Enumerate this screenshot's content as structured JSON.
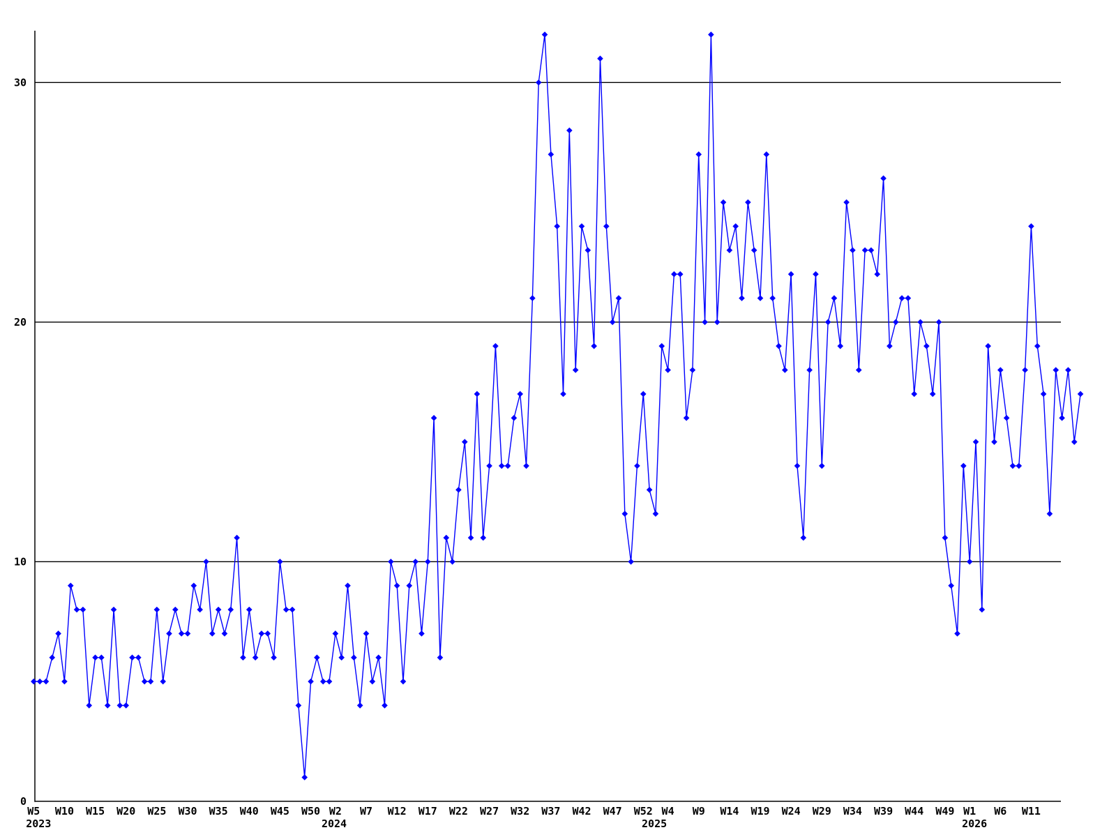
{
  "chart_data": {
    "type": "line",
    "title": "",
    "xlabel": "",
    "ylabel": "",
    "legend": "none",
    "grid": "horizontal",
    "line_color": "#0000ff",
    "marker": "diamond",
    "axis_color": "#000000",
    "background_color": "#ffffff",
    "y_ticks": [
      0,
      10,
      20,
      30
    ],
    "ylim": [
      0,
      32
    ],
    "x_unit": "week",
    "years": [
      {
        "year": "2023",
        "first_week": 5,
        "tick_weeks": [
          5,
          10,
          15,
          20,
          25,
          30,
          35,
          40,
          45,
          50
        ],
        "values": [
          5,
          5,
          5,
          6,
          7,
          5,
          9,
          8,
          8,
          4,
          6,
          6,
          4,
          8,
          4,
          4,
          6,
          6,
          5,
          5,
          8,
          5,
          7,
          8,
          7,
          7,
          9,
          8,
          10,
          7,
          8,
          7,
          8,
          11,
          6,
          8,
          6,
          7,
          7,
          6,
          10,
          8,
          8,
          4,
          1,
          5,
          6,
          5
        ]
      },
      {
        "year": "2024",
        "first_week": 1,
        "tick_weeks": [
          2,
          7,
          12,
          17,
          22,
          27,
          32,
          37,
          42,
          47,
          52
        ],
        "values": [
          5,
          7,
          6,
          9,
          6,
          4,
          7,
          5,
          6,
          4,
          10,
          9,
          5,
          9,
          10,
          7,
          10,
          16,
          6,
          11,
          10,
          13,
          15,
          11,
          17,
          11,
          14,
          19,
          14,
          14,
          16,
          17,
          14,
          21,
          30,
          32,
          27,
          24,
          17,
          28,
          18,
          24,
          23,
          19,
          31,
          24,
          20,
          21,
          12,
          10,
          14,
          17
        ]
      },
      {
        "year": "2025",
        "first_week": 1,
        "tick_weeks": [
          4,
          9,
          14,
          19,
          24,
          29,
          34,
          39,
          44,
          49
        ],
        "values": [
          13,
          12,
          19,
          18,
          22,
          22,
          16,
          18,
          27,
          20,
          32,
          20,
          25,
          23,
          24,
          21,
          25,
          23,
          21,
          27,
          21,
          19,
          18,
          22,
          14,
          11,
          18,
          22,
          14,
          20,
          21,
          19,
          25,
          23,
          18,
          23,
          23,
          22,
          26,
          19,
          20,
          21,
          21,
          17,
          20,
          19,
          17,
          20,
          11,
          9,
          7,
          14
        ]
      },
      {
        "year": "2026",
        "first_week": 1,
        "tick_weeks": [
          1,
          6,
          11
        ],
        "values": [
          10,
          15,
          8,
          19,
          15,
          18,
          16,
          14,
          14,
          18,
          24,
          19,
          17,
          12,
          18,
          16,
          18,
          15,
          17
        ]
      }
    ]
  }
}
